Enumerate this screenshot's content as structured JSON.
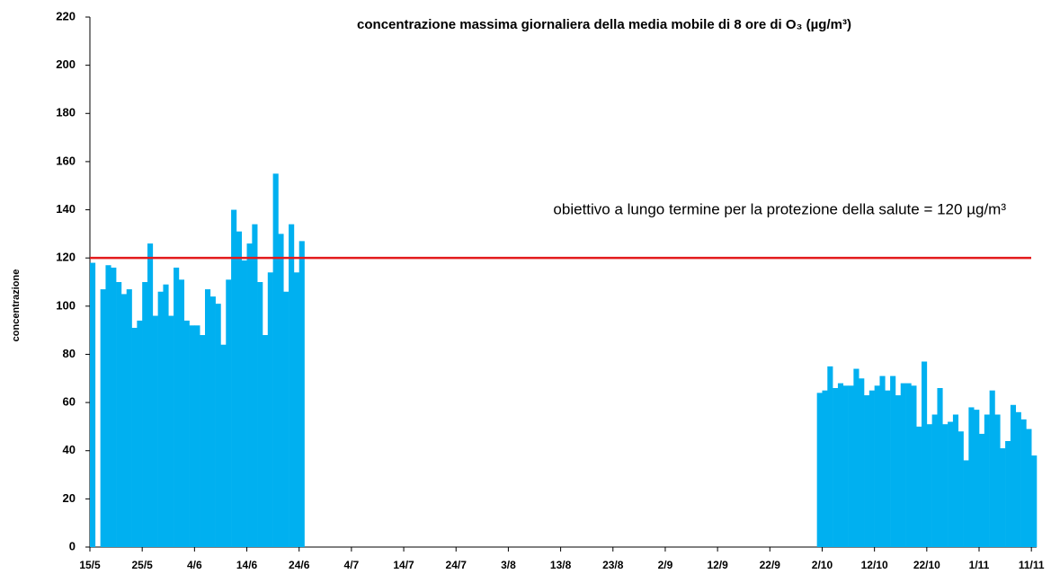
{
  "chart_data": {
    "type": "bar",
    "title": "concentrazione massima giornaliera della media mobile di 8 ore di O₃ (µg/m³)",
    "y_label": "concentrazione",
    "color": "#00b0f0",
    "ylim": [
      0,
      220
    ],
    "yticks": [
      0,
      20,
      40,
      60,
      80,
      100,
      120,
      140,
      160,
      180,
      200,
      220
    ],
    "threshold": {
      "value": 120,
      "label": "obiettivo a lungo termine per la protezione della salute = 120 µg/m³",
      "color": "#e31a1c"
    },
    "categories": [
      "15/5",
      null,
      null,
      null,
      null,
      null,
      null,
      null,
      null,
      null,
      "25/5",
      null,
      null,
      null,
      null,
      null,
      null,
      null,
      null,
      null,
      "4/6",
      null,
      null,
      null,
      null,
      null,
      null,
      null,
      null,
      null,
      "14/6",
      null,
      null,
      null,
      null,
      null,
      null,
      null,
      null,
      null,
      "24/6",
      null,
      null,
      null,
      null,
      null,
      null,
      null,
      null,
      null,
      "4/7",
      null,
      null,
      null,
      null,
      null,
      null,
      null,
      null,
      null,
      "14/7",
      null,
      null,
      null,
      null,
      null,
      null,
      null,
      null,
      null,
      "24/7",
      null,
      null,
      null,
      null,
      null,
      null,
      null,
      null,
      null,
      "3/8",
      null,
      null,
      null,
      null,
      null,
      null,
      null,
      null,
      null,
      "13/8",
      null,
      null,
      null,
      null,
      null,
      null,
      null,
      null,
      null,
      "23/8",
      null,
      null,
      null,
      null,
      null,
      null,
      null,
      null,
      null,
      "2/9",
      null,
      null,
      null,
      null,
      null,
      null,
      null,
      null,
      null,
      "12/9",
      null,
      null,
      null,
      null,
      null,
      null,
      null,
      null,
      null,
      "22/9",
      null,
      null,
      null,
      null,
      null,
      null,
      null,
      null,
      null,
      "2/10",
      null,
      null,
      null,
      null,
      null,
      null,
      null,
      null,
      null,
      "12/10",
      null,
      null,
      null,
      null,
      null,
      null,
      null,
      null,
      null,
      "22/10",
      null,
      null,
      null,
      null,
      null,
      null,
      null,
      null,
      null,
      "1/11",
      null,
      null,
      null,
      null,
      null,
      null,
      null,
      null,
      null,
      "11/11"
    ],
    "values": [
      118,
      null,
      107,
      117,
      116,
      110,
      105,
      107,
      91,
      94,
      110,
      126,
      96,
      106,
      109,
      96,
      116,
      111,
      94,
      92,
      92,
      88,
      107,
      104,
      101,
      84,
      111,
      140,
      131,
      119,
      126,
      134,
      110,
      88,
      114,
      155,
      130,
      106,
      134,
      114,
      127,
      null,
      null,
      null,
      null,
      null,
      null,
      null,
      null,
      null,
      null,
      null,
      null,
      null,
      null,
      null,
      null,
      null,
      null,
      null,
      null,
      null,
      null,
      null,
      null,
      null,
      null,
      null,
      null,
      null,
      null,
      null,
      null,
      null,
      null,
      null,
      null,
      null,
      null,
      null,
      null,
      null,
      null,
      null,
      null,
      null,
      null,
      null,
      null,
      null,
      null,
      null,
      null,
      null,
      null,
      null,
      null,
      null,
      null,
      null,
      null,
      null,
      null,
      null,
      null,
      null,
      null,
      null,
      null,
      null,
      null,
      null,
      null,
      null,
      null,
      null,
      null,
      null,
      null,
      null,
      null,
      null,
      null,
      null,
      null,
      null,
      null,
      null,
      null,
      null,
      null,
      null,
      null,
      null,
      null,
      null,
      null,
      null,
      null,
      64,
      65,
      75,
      66,
      68,
      67,
      67,
      74,
      70,
      63,
      65,
      67,
      71,
      65,
      71,
      63,
      68,
      68,
      67,
      50,
      77,
      51,
      55,
      66,
      51,
      52,
      55,
      48,
      36,
      58,
      57,
      47,
      55,
      65,
      55,
      41,
      44,
      59,
      56,
      53,
      49,
      38
    ]
  }
}
